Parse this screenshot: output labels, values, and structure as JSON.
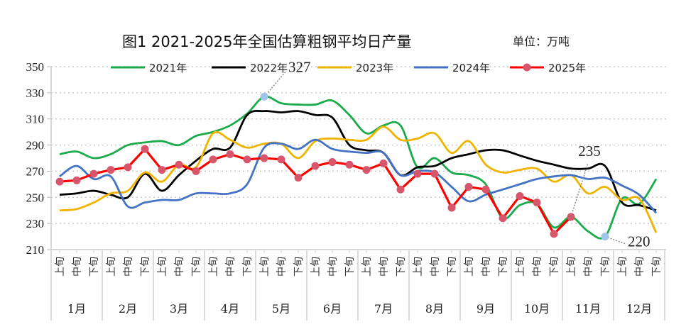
{
  "chart_data": {
    "type": "line",
    "title": "图1  2021-2025年全国估算粗钢平均日产量",
    "unit": "单位：万吨",
    "ylim": [
      210,
      350
    ],
    "yticks": [
      210,
      230,
      250,
      270,
      290,
      310,
      330,
      350
    ],
    "grid": true,
    "legend_position": "top",
    "periods": [
      "上旬",
      "中旬",
      "下旬"
    ],
    "months": [
      "1月",
      "2月",
      "3月",
      "4月",
      "5月",
      "6月",
      "7月",
      "8月",
      "9月",
      "10月",
      "11月",
      "12月"
    ],
    "series": [
      {
        "name": "2021年",
        "color": "#1aab4b",
        "markers": false,
        "values": [
          283,
          285,
          280,
          283,
          290,
          292,
          293,
          290,
          297,
          300,
          305,
          314,
          327,
          322,
          321,
          321,
          324,
          313,
          299,
          305,
          305,
          273,
          280,
          269,
          267,
          260,
          234,
          244,
          245,
          227,
          235,
          224,
          220,
          249,
          245,
          264
        ]
      },
      {
        "name": "2022年",
        "color": "#000000",
        "markers": false,
        "values": [
          252,
          253,
          255,
          252,
          250,
          268,
          255,
          267,
          278,
          287,
          288,
          313,
          316,
          315,
          316,
          313,
          311,
          290,
          286,
          284,
          267,
          273,
          274,
          280,
          283,
          286,
          286,
          282,
          278,
          275,
          272,
          272,
          274,
          246,
          244,
          240
        ]
      },
      {
        "name": "2023年",
        "color": "#f0b400",
        "markers": false,
        "values": [
          240,
          241,
          246,
          253,
          255,
          269,
          262,
          275,
          273,
          299,
          294,
          288,
          291,
          291,
          280,
          293,
          295,
          294,
          294,
          304,
          294,
          295,
          299,
          284,
          293,
          275,
          269,
          271,
          272,
          262,
          267,
          253,
          258,
          248,
          249,
          223
        ]
      },
      {
        "name": "2024年",
        "color": "#4472c4",
        "markers": false,
        "values": [
          266,
          274,
          264,
          266,
          243,
          246,
          248,
          248,
          253,
          253,
          253,
          260,
          288,
          291,
          287,
          294,
          287,
          285,
          284,
          284,
          267,
          270,
          269,
          258,
          247,
          252,
          256,
          260,
          264,
          266,
          267,
          264,
          265,
          259,
          252,
          238
        ]
      },
      {
        "name": "2025年",
        "color": "#ff0000",
        "marker_color": "#d9566a",
        "markers": true,
        "values": [
          262,
          263,
          268,
          271,
          273,
          287,
          271,
          275,
          270,
          279,
          283,
          279,
          280,
          279,
          265,
          274,
          277,
          275,
          271,
          276,
          256,
          268,
          268,
          242,
          258,
          256,
          234,
          251,
          246,
          222,
          235
        ]
      }
    ],
    "annotations": [
      {
        "text": "327",
        "series": "2021年",
        "index": 12,
        "value": 327
      },
      {
        "text": "235",
        "series": "2025年",
        "index": 30,
        "value": 235
      },
      {
        "text": "220",
        "series": "2021年",
        "index": 32,
        "value": 220
      }
    ],
    "highlight_marker_color": "#9fc5e8"
  }
}
